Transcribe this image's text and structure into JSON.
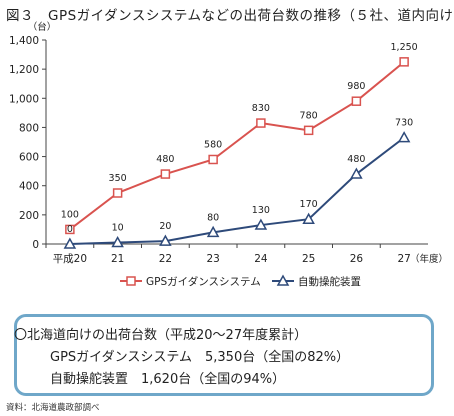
{
  "figure_title": "図３　GPSガイダンスシステムなどの出荷台数の推移（５社、道内向け）",
  "chart_data": {
    "type": "line",
    "categories": [
      "平成20",
      "21",
      "22",
      "23",
      "24",
      "25",
      "26",
      "27"
    ],
    "x_suffix": "（年度）",
    "y_unit": "（台）",
    "ylim": [
      0,
      1400
    ],
    "yticks": [
      "0",
      "200",
      "400",
      "600",
      "800",
      "1,000",
      "1,200",
      "1,400"
    ],
    "grid": false,
    "legend_position": "bottom",
    "series": [
      {
        "name": "GPSガイダンスシステム",
        "values": [
          100,
          350,
          480,
          580,
          830,
          780,
          980,
          1250
        ],
        "labels": [
          "100",
          "350",
          "480",
          "580",
          "830",
          "780",
          "980",
          "1,250"
        ],
        "color": "#d9534f",
        "marker": "square"
      },
      {
        "name": "自動操舵装置",
        "values": [
          0,
          10,
          20,
          80,
          130,
          170,
          480,
          730
        ],
        "labels": [
          "0",
          "10",
          "20",
          "80",
          "130",
          "170",
          "480",
          "730"
        ],
        "color": "#2e4a7a",
        "marker": "triangle"
      }
    ]
  },
  "summary": {
    "heading": "〇北海道向けの出荷台数（平成20～27年度累計）",
    "line1": "GPSガイダンスシステム　5,350台（全国の82%）",
    "line2": "自動操舵装置　1,620台（全国の94%）"
  },
  "source": "資料：北海道農政部調べ"
}
